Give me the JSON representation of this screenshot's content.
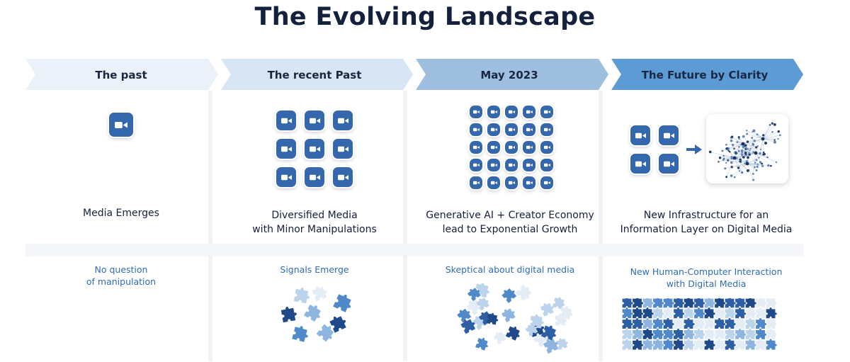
{
  "title": "The Evolving Landscape",
  "stages": [
    {
      "label": "The past",
      "description": [
        "Media Emerges"
      ],
      "subtext": [
        "No question",
        "of manipulation"
      ],
      "camera_count": 1
    },
    {
      "label": "The recent Past",
      "description": [
        "Diversified Media",
        "with Minor Manipulations"
      ],
      "subtext": [
        "Signals Emerge"
      ],
      "camera_count": 9
    },
    {
      "label": "May 2023",
      "description": [
        "Generative AI + Creator Economy",
        "lead to Exponential Growth"
      ],
      "subtext": [
        "Skeptical about digital media"
      ],
      "camera_count": 25
    },
    {
      "label": "The Future by Clarity",
      "description": [
        "New Infrastructure for an",
        "Information Layer on Digital Media"
      ],
      "subtext": [
        "New Human-Computer Interaction",
        "with Digital Media"
      ],
      "camera_count": 4
    }
  ],
  "colors": {
    "chevrons": [
      "#eaf1f9",
      "#d7e5f4",
      "#9ebfe0",
      "#5c9bd3"
    ],
    "camera": "#3567ac",
    "subtext": "#2e6db4",
    "title": "#14213d"
  },
  "icons": {
    "camera": "video-camera-icon",
    "arrow": "arrow-right-icon",
    "network": "network-graph-icon",
    "puzzle": "puzzle-piece-icon"
  }
}
